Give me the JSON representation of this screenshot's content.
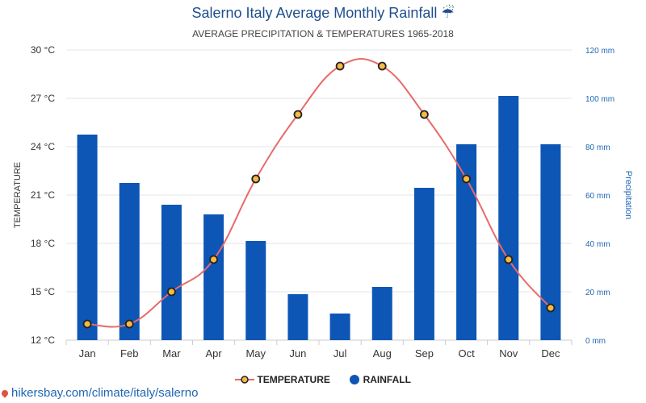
{
  "header": {
    "title": "Salerno Italy Average Monthly Rainfall ☔",
    "subtitle": "AVERAGE PRECIPITATION & TEMPERATURES 1965-2018"
  },
  "legend": {
    "temperature_label": "TEMPERATURE",
    "rainfall_label": "RAINFALL"
  },
  "footer": {
    "source": "hikersbay.com/climate/italy/salerno"
  },
  "colors": {
    "bar": "#0d56b5",
    "line": "#e86a6a",
    "marker_fill": "#f5b944",
    "marker_stroke": "#222222",
    "title": "#1f4e8c"
  },
  "chart_data": {
    "type": "bar",
    "categories": [
      "Jan",
      "Feb",
      "Mar",
      "Apr",
      "May",
      "Jun",
      "Jul",
      "Aug",
      "Sep",
      "Oct",
      "Nov",
      "Dec"
    ],
    "series": [
      {
        "name": "RAINFALL",
        "type": "bar",
        "axis": "right",
        "values": [
          85,
          65,
          56,
          52,
          41,
          19,
          11,
          22,
          63,
          81,
          101,
          81
        ]
      },
      {
        "name": "TEMPERATURE",
        "type": "line",
        "axis": "left",
        "values": [
          13,
          13,
          15,
          17,
          22,
          26,
          29,
          29,
          26,
          22,
          17,
          14
        ]
      }
    ],
    "ylabel_left": "TEMPERATURE",
    "ylabel_right": "Precipitation",
    "ylim_left": [
      12,
      30
    ],
    "ylim_right": [
      0,
      120
    ],
    "left_ticks": [
      "12 °C",
      "15 °C",
      "18 °C",
      "21 °C",
      "24 °C",
      "27 °C",
      "30 °C"
    ],
    "right_ticks": [
      "0 mm",
      "20 mm",
      "40 mm",
      "60 mm",
      "80 mm",
      "100 mm",
      "120 mm"
    ],
    "grid": true,
    "legend_position": "bottom"
  }
}
